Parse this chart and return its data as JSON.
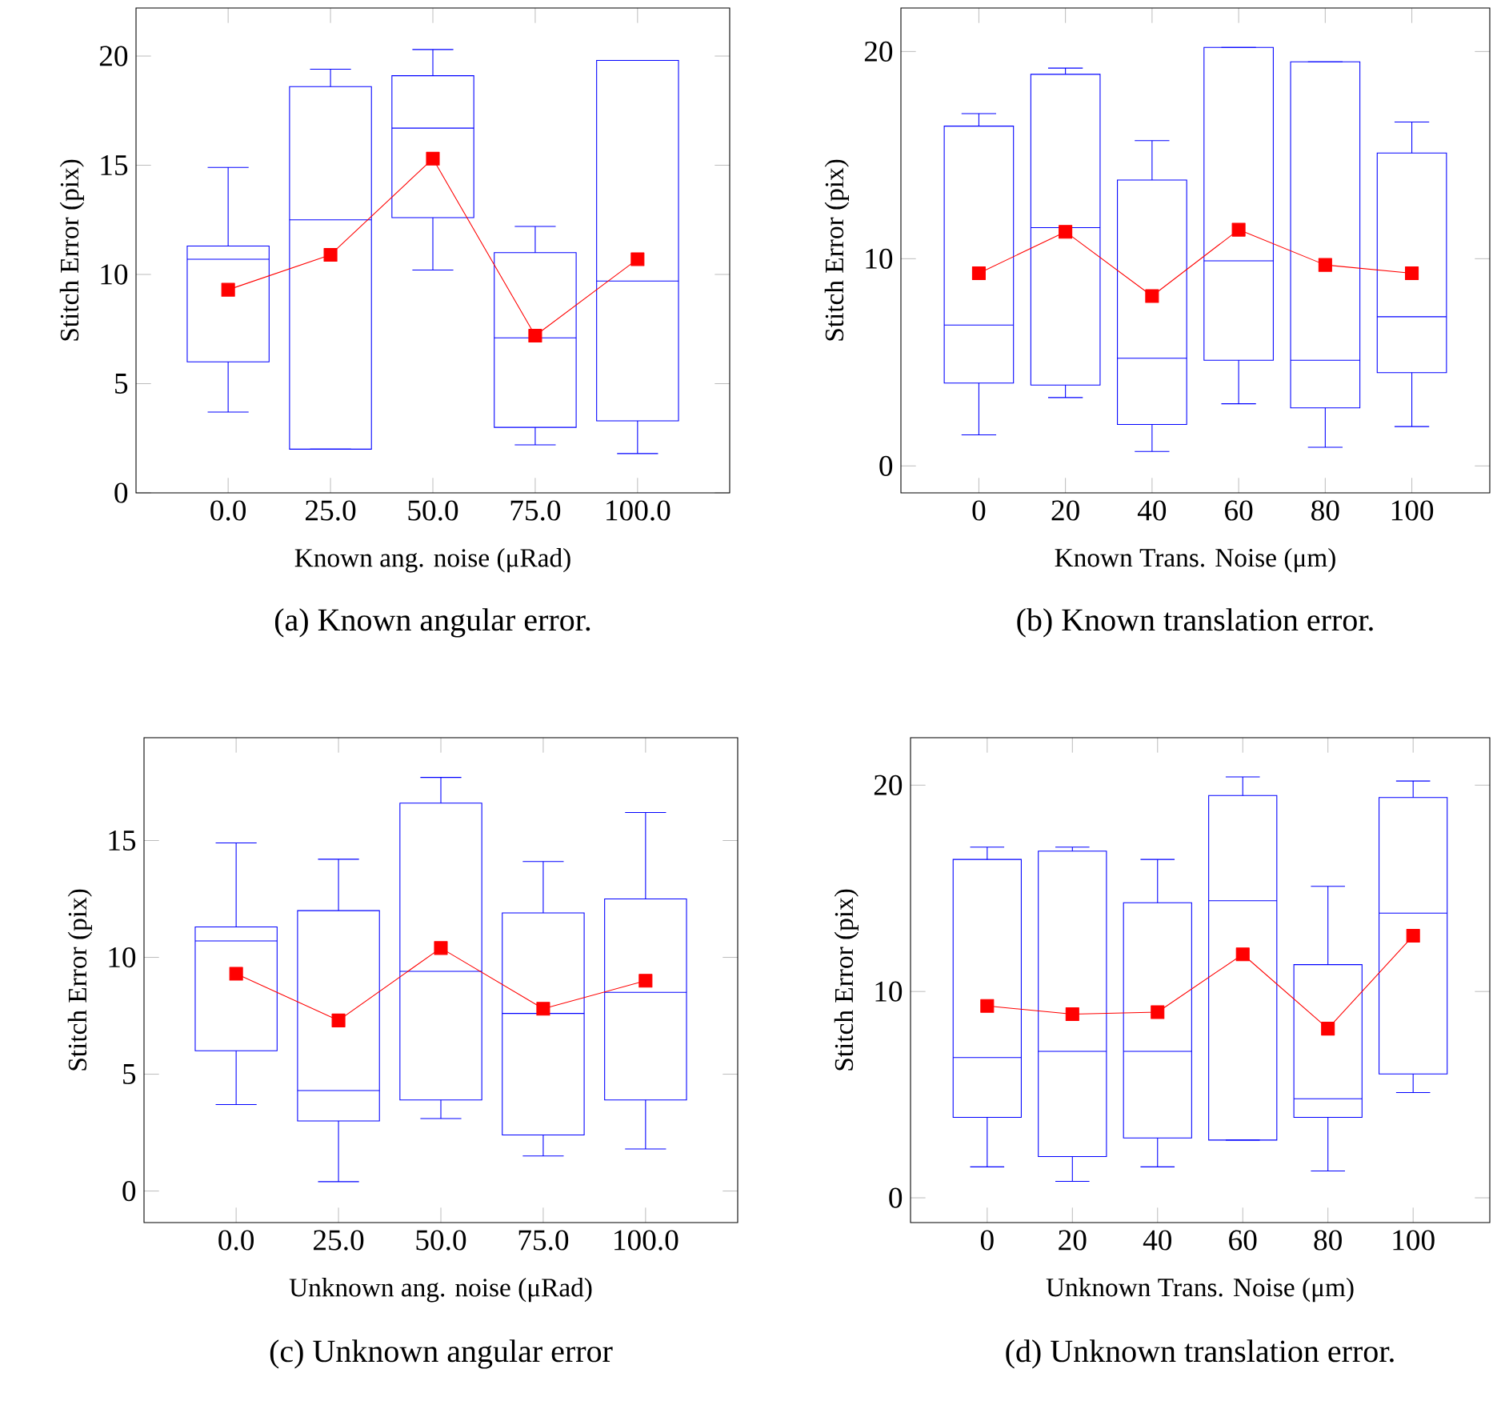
{
  "chart_data": [
    {
      "type": "box",
      "categories": [
        "0.0",
        "25.0",
        "50.0",
        "75.0",
        "100.0"
      ],
      "color": "#0000ff",
      "xlabel": "Known ang. noise (μRad)",
      "ylabel": "Stitch Error (pix)",
      "ylim": [
        0,
        22.2
      ],
      "yticks": [
        0,
        5,
        10,
        15,
        20
      ],
      "boxes": [
        {
          "low": 3.7,
          "q1": 6.0,
          "median": 10.7,
          "q3": 11.3,
          "high": 14.9
        },
        {
          "low": 2.0,
          "q1": 2.0,
          "median": 12.5,
          "q3": 18.6,
          "high": 19.4
        },
        {
          "low": 10.2,
          "q1": 12.6,
          "median": 16.7,
          "q3": 19.1,
          "high": 20.3
        },
        {
          "low": 2.2,
          "q1": 3.0,
          "median": 7.1,
          "q3": 11.0,
          "high": 12.2
        },
        {
          "low": 1.8,
          "q1": 3.3,
          "median": 9.7,
          "q3": 19.8,
          "high": 19.8
        }
      ],
      "series": [
        {
          "type": "line",
          "color": "#ff0000",
          "marker": "square",
          "values": [
            9.3,
            10.9,
            15.3,
            7.2,
            10.7
          ]
        }
      ],
      "annotations": [
        "(a) Known angular error."
      ]
    },
    {
      "type": "box",
      "categories": [
        "0",
        "20",
        "40",
        "60",
        "80",
        "100"
      ],
      "color": "#0000ff",
      "xlabel": "Known Trans. Noise (μm)",
      "ylabel": "Stitch Error (pix)",
      "ylim": [
        -1.3,
        22.1
      ],
      "yticks": [
        0,
        10,
        20
      ],
      "boxes": [
        {
          "low": 1.5,
          "q1": 4.0,
          "median": 6.8,
          "q3": 16.4,
          "high": 17.0
        },
        {
          "low": 3.3,
          "q1": 3.9,
          "median": 11.5,
          "q3": 18.9,
          "high": 19.2
        },
        {
          "low": 0.7,
          "q1": 2.0,
          "median": 5.2,
          "q3": 13.8,
          "high": 15.7
        },
        {
          "low": 3.0,
          "q1": 5.1,
          "median": 9.9,
          "q3": 20.2,
          "high": 20.2
        },
        {
          "low": 0.9,
          "q1": 2.8,
          "median": 5.1,
          "q3": 19.5,
          "high": 19.5
        },
        {
          "low": 1.9,
          "q1": 4.5,
          "median": 7.2,
          "q3": 15.1,
          "high": 16.6
        }
      ],
      "series": [
        {
          "type": "line",
          "color": "#ff0000",
          "marker": "square",
          "values": [
            9.3,
            11.3,
            8.2,
            11.4,
            9.7,
            9.3
          ]
        }
      ],
      "annotations": [
        "(b) Known translation error."
      ]
    },
    {
      "type": "box",
      "categories": [
        "0.0",
        "25.0",
        "50.0",
        "75.0",
        "100.0"
      ],
      "color": "#0000ff",
      "xlabel": "Unknown ang. noise (μRad)",
      "ylabel": "Stitch Error (pix)",
      "ylim": [
        -1.35,
        19.4
      ],
      "yticks": [
        0,
        5,
        10,
        15
      ],
      "boxes": [
        {
          "low": 3.7,
          "q1": 6.0,
          "median": 10.7,
          "q3": 11.3,
          "high": 14.9
        },
        {
          "low": 0.4,
          "q1": 3.0,
          "median": 4.3,
          "q3": 12.0,
          "high": 14.2
        },
        {
          "low": 3.1,
          "q1": 3.9,
          "median": 9.4,
          "q3": 16.6,
          "high": 17.7
        },
        {
          "low": 1.5,
          "q1": 2.4,
          "median": 7.6,
          "q3": 11.9,
          "high": 14.1
        },
        {
          "low": 1.8,
          "q1": 3.9,
          "median": 8.5,
          "q3": 12.5,
          "high": 16.2
        }
      ],
      "series": [
        {
          "type": "line",
          "color": "#ff0000",
          "marker": "square",
          "values": [
            9.3,
            7.3,
            10.4,
            7.8,
            9.0
          ]
        }
      ],
      "annotations": [
        "(c) Unknown angular error"
      ]
    },
    {
      "type": "box",
      "categories": [
        "0",
        "20",
        "40",
        "60",
        "80",
        "100"
      ],
      "color": "#0000ff",
      "xlabel": "Unknown Trans. Noise (μm)",
      "ylabel": "Stitch Error (pix)",
      "ylim": [
        -1.2,
        22.3
      ],
      "yticks": [
        0,
        10,
        20
      ],
      "boxes": [
        {
          "low": 1.5,
          "q1": 3.9,
          "median": 6.8,
          "q3": 16.4,
          "high": 17.0
        },
        {
          "low": 0.8,
          "q1": 2.0,
          "median": 7.1,
          "q3": 16.8,
          "high": 17.0
        },
        {
          "low": 1.5,
          "q1": 2.9,
          "median": 7.1,
          "q3": 14.3,
          "high": 16.4
        },
        {
          "low": 2.8,
          "q1": 2.8,
          "median": 14.4,
          "q3": 19.5,
          "high": 20.4
        },
        {
          "low": 1.3,
          "q1": 3.9,
          "median": 4.8,
          "q3": 11.3,
          "high": 15.1
        },
        {
          "low": 5.1,
          "q1": 6.0,
          "median": 13.8,
          "q3": 19.4,
          "high": 20.2
        }
      ],
      "series": [
        {
          "type": "line",
          "color": "#ff0000",
          "marker": "square",
          "values": [
            9.3,
            8.9,
            9.0,
            11.8,
            8.2,
            12.7
          ]
        }
      ],
      "annotations": [
        "(d) Unknown translation error."
      ]
    }
  ]
}
